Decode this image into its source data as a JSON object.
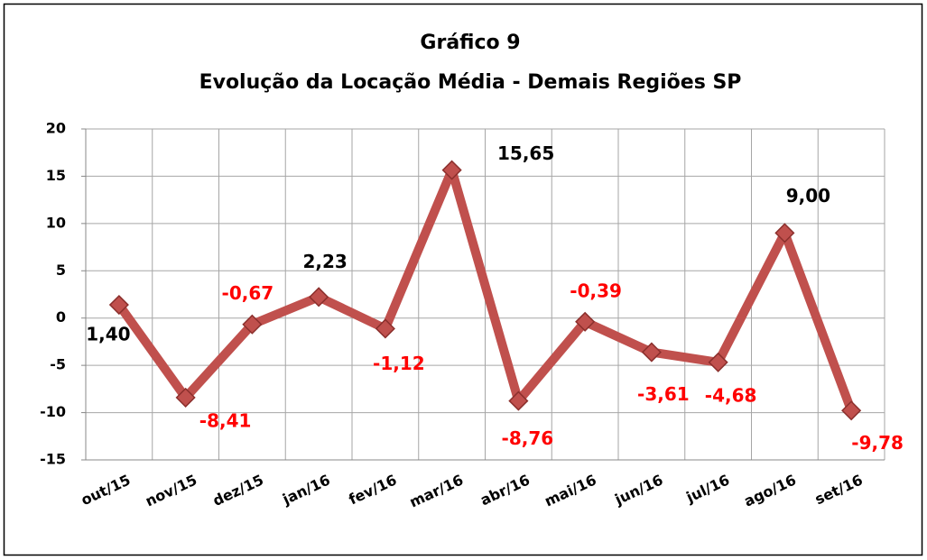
{
  "chart_data": {
    "type": "line",
    "title": "Gráfico 9",
    "subtitle": "Evolução da Locação Média - Demais Regiões SP",
    "categories": [
      "out/15",
      "nov/15",
      "dez/15",
      "jan/16",
      "fev/16",
      "mar/16",
      "abr/16",
      "mai/16",
      "jun/16",
      "jul/16",
      "ago/16",
      "set/16"
    ],
    "series": [
      {
        "name": "Locação Média",
        "color": "#c0504d",
        "values": [
          1.4,
          -8.41,
          -0.67,
          2.23,
          -1.12,
          15.65,
          -8.76,
          -0.39,
          -3.61,
          -4.68,
          9.0,
          -9.78
        ],
        "value_labels": [
          "1,40",
          "-8,41",
          "-0,67",
          "2,23",
          "-1,12",
          "15,65",
          "-8,76",
          "-0,39",
          "-3,61",
          "-4,68",
          "9,00",
          "-9,78"
        ]
      }
    ],
    "positive_label_color": "#000000",
    "negative_label_color": "#ff0000",
    "ylim": [
      -15,
      20
    ],
    "yticks": [
      -15,
      -10,
      -5,
      0,
      5,
      10,
      15,
      20
    ],
    "grid": true
  }
}
